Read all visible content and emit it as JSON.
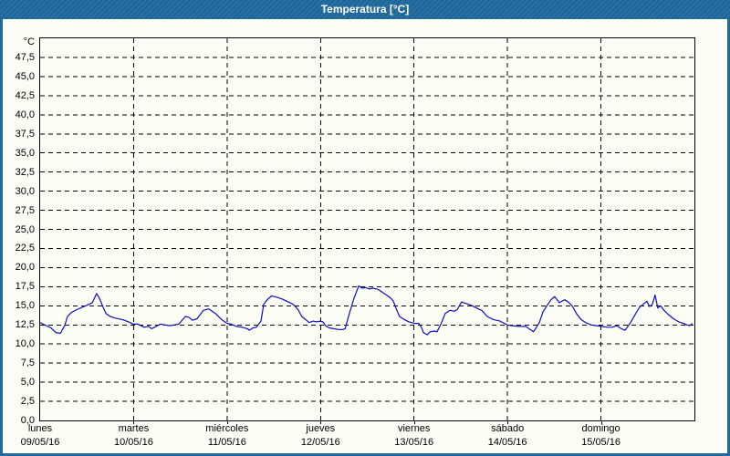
{
  "window": {
    "title": "Temperatura [°C]",
    "colors": {
      "frame": "#1e699e",
      "title_text": "#ffffff",
      "surface": "#fcfdf5",
      "grid": "#000000",
      "axis": "#000000",
      "series": "#0f0fc0",
      "label_text": "#000000"
    }
  },
  "chart_data": {
    "type": "line",
    "title": "Temperatura [°C]",
    "ylabel": "°C",
    "xlabel": "",
    "ylim": [
      0,
      50
    ],
    "grid": "dashed",
    "legend": "none",
    "y_axis": {
      "min": 0,
      "max": 50,
      "tick_step": 2.5,
      "unit_label": "°C",
      "ticks": [
        {
          "value": 47.5,
          "label": "47,5"
        },
        {
          "value": 45.0,
          "label": "45,0"
        },
        {
          "value": 42.5,
          "label": "42,5"
        },
        {
          "value": 40.0,
          "label": "40,0"
        },
        {
          "value": 37.5,
          "label": "37,5"
        },
        {
          "value": 35.0,
          "label": "35,0"
        },
        {
          "value": 32.5,
          "label": "32,5"
        },
        {
          "value": 30.0,
          "label": "30,0"
        },
        {
          "value": 27.5,
          "label": "27,5"
        },
        {
          "value": 25.0,
          "label": "25,0"
        },
        {
          "value": 22.5,
          "label": "22,5"
        },
        {
          "value": 20.0,
          "label": "20,0"
        },
        {
          "value": 17.5,
          "label": "17,5"
        },
        {
          "value": 15.0,
          "label": "15,0"
        },
        {
          "value": 12.5,
          "label": "12,5"
        },
        {
          "value": 10.0,
          "label": "10,0"
        },
        {
          "value": 7.5,
          "label": "7,5"
        },
        {
          "value": 5.0,
          "label": "5,0"
        },
        {
          "value": 2.5,
          "label": "2,5"
        },
        {
          "value": 0.0,
          "label": "0,0"
        }
      ]
    },
    "x_axis": {
      "total_hours": 168,
      "hours_per_day": 24,
      "days": [
        {
          "name": "lunes",
          "date": "09/05/16"
        },
        {
          "name": "martes",
          "date": "10/05/16"
        },
        {
          "name": "miércoles",
          "date": "11/05/16"
        },
        {
          "name": "jueves",
          "date": "12/05/16"
        },
        {
          "name": "viernes",
          "date": "13/05/16"
        },
        {
          "name": "sábado",
          "date": "14/05/16"
        },
        {
          "name": "domingo",
          "date": "15/05/16"
        }
      ]
    },
    "series": [
      {
        "name": "Temperatura",
        "color": "#0f0fc0",
        "points_hours_temp": [
          [
            0,
            12.8
          ],
          [
            1.6,
            12.4
          ],
          [
            2.8,
            12.1
          ],
          [
            4,
            11.5
          ],
          [
            5.2,
            11.4
          ],
          [
            6.3,
            12.4
          ],
          [
            7,
            13.6
          ],
          [
            8,
            14.1
          ],
          [
            9.4,
            14.5
          ],
          [
            11.7,
            15.0
          ],
          [
            13.4,
            15.4
          ],
          [
            14.5,
            16.6
          ],
          [
            15.2,
            16.0
          ],
          [
            16.2,
            14.8
          ],
          [
            16.9,
            14.0
          ],
          [
            18,
            13.6
          ],
          [
            19.2,
            13.4
          ],
          [
            21.1,
            13.2
          ],
          [
            22.7,
            12.9
          ],
          [
            23.9,
            12.6
          ],
          [
            25.1,
            12.6
          ],
          [
            26.7,
            12.2
          ],
          [
            27.9,
            12.3
          ],
          [
            28.6,
            12.0
          ],
          [
            29.8,
            12.3
          ],
          [
            30.9,
            12.6
          ],
          [
            32.1,
            12.5
          ],
          [
            33.3,
            12.4
          ],
          [
            34.4,
            12.5
          ],
          [
            35.6,
            12.6
          ],
          [
            37.3,
            13.6
          ],
          [
            38.2,
            13.5
          ],
          [
            39.1,
            13.1
          ],
          [
            40.3,
            13.3
          ],
          [
            41.9,
            14.4
          ],
          [
            43.3,
            14.6
          ],
          [
            45,
            14.0
          ],
          [
            46.6,
            13.2
          ],
          [
            48,
            12.7
          ],
          [
            49,
            12.6
          ],
          [
            50.4,
            12.3
          ],
          [
            51.8,
            12.2
          ],
          [
            53.2,
            12.0
          ],
          [
            53.7,
            11.8
          ],
          [
            54.6,
            12.1
          ],
          [
            55.5,
            12.2
          ],
          [
            56.7,
            13.0
          ],
          [
            57.4,
            15.2
          ],
          [
            58.3,
            15.8
          ],
          [
            59.5,
            16.3
          ],
          [
            60.9,
            16.1
          ],
          [
            62.1,
            15.9
          ],
          [
            63.7,
            15.5
          ],
          [
            64.9,
            15.2
          ],
          [
            66.1,
            14.6
          ],
          [
            67.2,
            13.6
          ],
          [
            68.4,
            13.1
          ],
          [
            69.1,
            12.8
          ],
          [
            70.1,
            13.0
          ],
          [
            71,
            12.9
          ],
          [
            71.9,
            13.0
          ],
          [
            72.6,
            12.9
          ],
          [
            73.3,
            12.4
          ],
          [
            74.3,
            12.1
          ],
          [
            75.4,
            12.0
          ],
          [
            76.6,
            11.9
          ],
          [
            77.8,
            11.9
          ],
          [
            78.3,
            12.0
          ],
          [
            79.4,
            14.0
          ],
          [
            80.6,
            16.0
          ],
          [
            81.8,
            17.6
          ],
          [
            82.7,
            17.3
          ],
          [
            83.6,
            17.4
          ],
          [
            84.4,
            17.2
          ],
          [
            85.5,
            17.3
          ],
          [
            86.5,
            17.2
          ],
          [
            87.2,
            17.0
          ],
          [
            88.1,
            16.7
          ],
          [
            89,
            16.4
          ],
          [
            90,
            16.0
          ],
          [
            90.7,
            15.6
          ],
          [
            91.6,
            14.4
          ],
          [
            92.3,
            13.6
          ],
          [
            93.5,
            13.2
          ],
          [
            94.7,
            12.9
          ],
          [
            96.1,
            12.7
          ],
          [
            97.2,
            12.7
          ],
          [
            97.9,
            12.2
          ],
          [
            98.4,
            11.5
          ],
          [
            99.4,
            11.2
          ],
          [
            100.1,
            11.6
          ],
          [
            101.2,
            11.7
          ],
          [
            101.9,
            11.6
          ],
          [
            102.9,
            12.6
          ],
          [
            104,
            14.0
          ],
          [
            105.2,
            14.4
          ],
          [
            106.4,
            14.3
          ],
          [
            107.1,
            14.5
          ],
          [
            108.2,
            15.5
          ],
          [
            109.4,
            15.3
          ],
          [
            111,
            15.0
          ],
          [
            112.5,
            14.6
          ],
          [
            113.4,
            14.4
          ],
          [
            114.8,
            13.6
          ],
          [
            116.4,
            13.2
          ],
          [
            118.1,
            13.0
          ],
          [
            120,
            12.5
          ],
          [
            121.1,
            12.4
          ],
          [
            123,
            12.3
          ],
          [
            124.7,
            12.3
          ],
          [
            125.8,
            11.9
          ],
          [
            126.7,
            11.6
          ],
          [
            128.2,
            12.8
          ],
          [
            129.1,
            14.2
          ],
          [
            130,
            14.9
          ],
          [
            131.2,
            15.8
          ],
          [
            132.1,
            16.2
          ],
          [
            133.3,
            15.4
          ],
          [
            134.7,
            15.8
          ],
          [
            135.6,
            15.5
          ],
          [
            136.6,
            15.0
          ],
          [
            137.7,
            14.0
          ],
          [
            138.9,
            13.2
          ],
          [
            140.1,
            12.8
          ],
          [
            141.5,
            12.5
          ],
          [
            142.9,
            12.4
          ],
          [
            144.1,
            12.3
          ],
          [
            145.7,
            12.2
          ],
          [
            146.9,
            12.2
          ],
          [
            148.1,
            12.4
          ],
          [
            149.2,
            12.0
          ],
          [
            150.2,
            11.8
          ],
          [
            151.6,
            12.8
          ],
          [
            152.7,
            13.8
          ],
          [
            153.9,
            14.8
          ],
          [
            155.1,
            15.3
          ],
          [
            155.8,
            15.6
          ],
          [
            156.5,
            14.9
          ],
          [
            157.2,
            15.2
          ],
          [
            157.9,
            16.4
          ],
          [
            158.6,
            14.7
          ],
          [
            159.3,
            15.0
          ],
          [
            160.2,
            14.4
          ],
          [
            161.2,
            13.9
          ],
          [
            162.6,
            13.3
          ],
          [
            164,
            12.9
          ],
          [
            165.2,
            12.7
          ],
          [
            166.1,
            12.5
          ],
          [
            166.8,
            12.4
          ],
          [
            167.5,
            12.7
          ]
        ]
      }
    ]
  }
}
